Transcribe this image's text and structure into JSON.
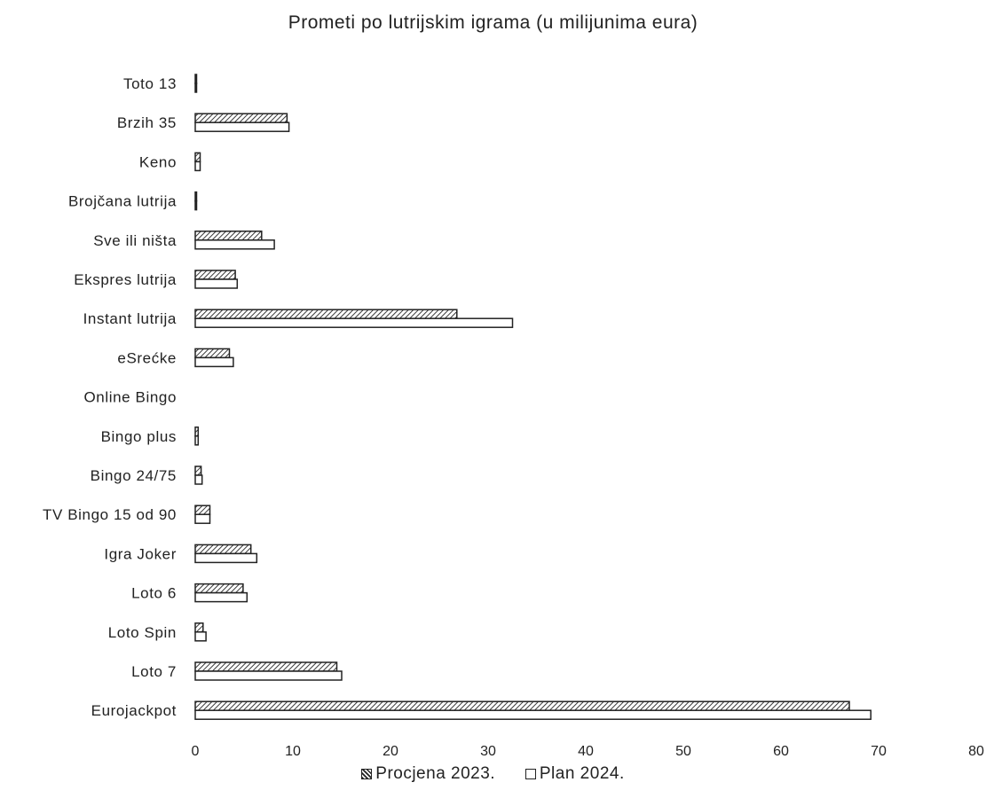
{
  "chart_data": {
    "type": "bar",
    "orientation": "horizontal",
    "title": "Prometi po lutrijskim igrama (u milijunima eura)",
    "xlabel": "",
    "ylabel": "",
    "xlim": [
      0,
      80
    ],
    "x_ticks": [
      "0",
      "10",
      "20",
      "30",
      "40",
      "50",
      "60",
      "70",
      "80"
    ],
    "categories": [
      "Toto 13",
      "Brzih 35",
      "Keno",
      "Brojčana lutrija",
      "Sve ili ništa",
      "Ekspres lutrija",
      "Instant lutrija",
      "eSrećke",
      "Online Bingo",
      "Bingo plus",
      "Bingo 24/75",
      "TV Bingo 15 od 90",
      "Igra Joker",
      "Loto 6",
      "Loto Spin",
      "Loto 7",
      "Eurojackpot"
    ],
    "series": [
      {
        "name": "Procjena 2023.",
        "pattern": "hatched",
        "values": [
          0.1,
          9.4,
          0.5,
          0.1,
          6.8,
          4.1,
          26.8,
          3.5,
          0,
          0.3,
          0.6,
          1.5,
          5.7,
          4.9,
          0.8,
          14.5,
          67.0
        ]
      },
      {
        "name": "Plan 2024.",
        "pattern": "plain",
        "values": [
          0.1,
          9.6,
          0.5,
          0.1,
          8.1,
          4.3,
          32.5,
          3.9,
          0,
          0.3,
          0.7,
          1.5,
          6.3,
          5.3,
          1.1,
          15.0,
          69.2
        ]
      }
    ],
    "grid": false,
    "legend_position": "bottom-center"
  },
  "colors": {
    "stroke": "#222222",
    "background": "#ffffff"
  }
}
